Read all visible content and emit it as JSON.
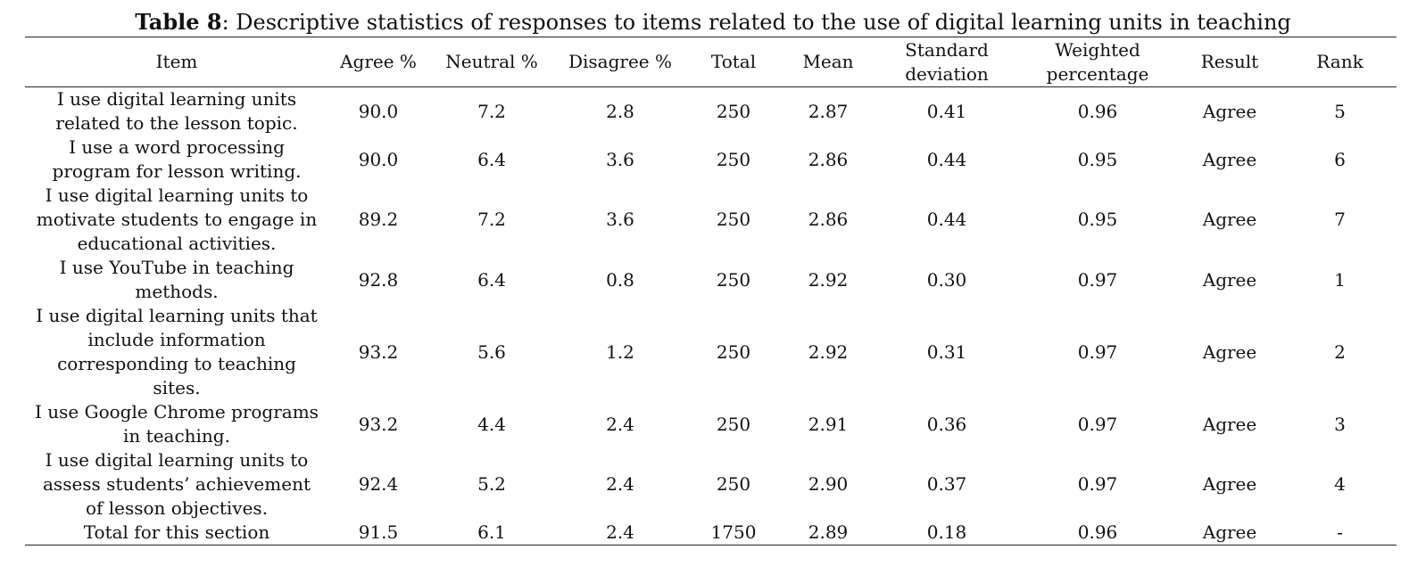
{
  "caption": {
    "label": "Table 8",
    "text": ": Descriptive statistics of responses to items related to the use of digital learning units in teaching"
  },
  "headers": [
    [
      "Item"
    ],
    [
      "Agree %"
    ],
    [
      "Neutral %"
    ],
    [
      "Disagree %"
    ],
    [
      "Total"
    ],
    [
      "Mean"
    ],
    [
      "Standard",
      "deviation"
    ],
    [
      "Weighted",
      "percentage"
    ],
    [
      "Result"
    ],
    [
      "Rank"
    ]
  ],
  "rows": [
    {
      "item": [
        "I use digital learning units",
        "related to the lesson topic."
      ],
      "cells": [
        "90.0",
        "7.2",
        "2.8",
        "250",
        "2.87",
        "0.41",
        "0.96",
        "Agree",
        "5"
      ]
    },
    {
      "item": [
        "I use a word processing",
        "program for lesson writing."
      ],
      "cells": [
        "90.0",
        "6.4",
        "3.6",
        "250",
        "2.86",
        "0.44",
        "0.95",
        "Agree",
        "6"
      ]
    },
    {
      "item": [
        "I use digital learning units to",
        "motivate students to engage in",
        "educational activities."
      ],
      "cells": [
        "89.2",
        "7.2",
        "3.6",
        "250",
        "2.86",
        "0.44",
        "0.95",
        "Agree",
        "7"
      ]
    },
    {
      "item": [
        "I use YouTube in teaching",
        "methods."
      ],
      "cells": [
        "92.8",
        "6.4",
        "0.8",
        "250",
        "2.92",
        "0.30",
        "0.97",
        "Agree",
        "1"
      ]
    },
    {
      "item": [
        "I use digital learning units that",
        "include information",
        "corresponding to teaching",
        "sites."
      ],
      "cells": [
        "93.2",
        "5.6",
        "1.2",
        "250",
        "2.92",
        "0.31",
        "0.97",
        "Agree",
        "2"
      ]
    },
    {
      "item": [
        "I use Google Chrome programs",
        "in teaching."
      ],
      "cells": [
        "93.2",
        "4.4",
        "2.4",
        "250",
        "2.91",
        "0.36",
        "0.97",
        "Agree",
        "3"
      ]
    },
    {
      "item": [
        "I use digital learning units to",
        "assess students’ achievement",
        "of lesson objectives."
      ],
      "cells": [
        "92.4",
        "5.2",
        "2.4",
        "250",
        "2.90",
        "0.37",
        "0.97",
        "Agree",
        "4"
      ]
    },
    {
      "item": [
        "Total for this section"
      ],
      "cells": [
        "91.5",
        "6.1",
        "2.4",
        "1750",
        "2.89",
        "0.18",
        "0.96",
        "Agree",
        "-"
      ]
    }
  ]
}
